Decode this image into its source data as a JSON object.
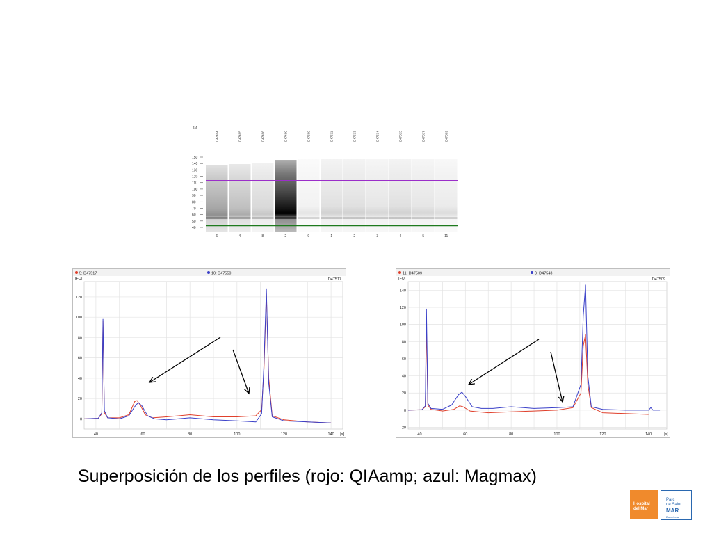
{
  "chart_data": [
    {
      "type": "heatmap",
      "yunit": "[s]",
      "yticks": [
        150,
        140,
        130,
        120,
        110,
        100,
        90,
        80,
        70,
        60,
        50,
        40
      ],
      "lanes": [
        {
          "label": "D47494",
          "number": "6",
          "dark": 0.35
        },
        {
          "label": "D47495",
          "number": "4",
          "dark": 0.25
        },
        {
          "label": "D47496",
          "number": "8",
          "dark": 0.15
        },
        {
          "label": "D47490",
          "number": "2",
          "dark": 0.9
        },
        {
          "label": "D47509",
          "number": "9",
          "dark": 0.05
        },
        {
          "label": "D47511",
          "number": "1",
          "dark": 0.12
        },
        {
          "label": "D47513",
          "number": "2",
          "dark": 0.12
        },
        {
          "label": "D47514",
          "number": "3",
          "dark": 0.1
        },
        {
          "label": "D47515",
          "number": "4",
          "dark": 0.12
        },
        {
          "label": "D47517",
          "number": "5",
          "dark": 0.1
        },
        {
          "label": "D47509",
          "number": "11",
          "dark": 0.08
        }
      ],
      "upper_marker_s": 113,
      "lower_marker_s": 43,
      "upper_marker_color": "#9b2fc9",
      "lower_marker_color": "#1e7a1e"
    },
    {
      "type": "line",
      "legend": [
        "5: D47517",
        "10: D47550"
      ],
      "corner_label": "D47517",
      "yunit": "[FU]",
      "xunit": "[s]",
      "xlim": [
        35,
        145
      ],
      "ylim": [
        -10,
        135
      ],
      "xticks": [
        40,
        60,
        80,
        100,
        120,
        140
      ],
      "yticks": [
        0,
        20,
        40,
        60,
        80,
        100,
        120
      ],
      "series": [
        {
          "name": "5: D47517",
          "color": "#e0402c",
          "x": [
            35,
            41,
            42.5,
            43,
            43.6,
            45,
            50,
            54,
            56.5,
            57.5,
            59,
            61,
            64,
            70,
            80,
            90,
            100,
            108,
            110.5,
            111.5,
            112.5,
            113.5,
            115,
            120,
            130,
            140
          ],
          "y": [
            0,
            0.5,
            5,
            96,
            6,
            1,
            1,
            4,
            17,
            18,
            13,
            4,
            1,
            2,
            4,
            2,
            2,
            3,
            9,
            50,
            123,
            40,
            3,
            -1,
            -3,
            -4
          ]
        },
        {
          "name": "10: D47550",
          "color": "#3a40c8",
          "x": [
            35,
            41,
            42.5,
            43,
            43.6,
            45,
            50,
            54,
            56.5,
            58,
            59.5,
            62,
            65,
            70,
            80,
            90,
            100,
            108,
            110.5,
            111.5,
            112.5,
            113.5,
            115,
            120,
            130,
            140
          ],
          "y": [
            0,
            0.5,
            6,
            98,
            8,
            1,
            0,
            3,
            12,
            16,
            13,
            3,
            0,
            -1,
            1,
            -1,
            -2,
            -3,
            5,
            55,
            128,
            35,
            2,
            -2,
            -3,
            -4
          ]
        }
      ]
    },
    {
      "type": "line",
      "legend": [
        "11: D47509",
        "9: D47543"
      ],
      "corner_label": "D47509",
      "yunit": "[FU]",
      "xunit": "[s]",
      "xlim": [
        35,
        148
      ],
      "ylim": [
        -22,
        150
      ],
      "xticks": [
        40,
        60,
        80,
        100,
        120,
        140
      ],
      "yticks": [
        -20,
        0,
        20,
        40,
        60,
        80,
        100,
        120,
        140
      ],
      "series": [
        {
          "name": "11: D47509",
          "color": "#e0402c",
          "x": [
            35,
            41,
            42.5,
            43,
            43.6,
            45,
            50,
            55,
            57.5,
            59,
            62,
            70,
            80,
            90,
            100,
            107,
            110.5,
            111.5,
            112.5,
            113.5,
            115,
            120,
            130,
            140
          ],
          "y": [
            0,
            0.5,
            4,
            100,
            6,
            1,
            -1,
            1,
            5,
            4,
            -1,
            -3,
            -2,
            -1,
            0,
            3,
            20,
            75,
            88,
            30,
            3,
            -3,
            -4,
            -5
          ]
        },
        {
          "name": "9: D47543",
          "color": "#3a40c8",
          "x": [
            35,
            41,
            42.5,
            43,
            43.6,
            45,
            50,
            54,
            57,
            58.5,
            60,
            63,
            67,
            72,
            80,
            90,
            100,
            107,
            110.5,
            111.5,
            112.5,
            113.5,
            115,
            120,
            130,
            140,
            141,
            142,
            145
          ],
          "y": [
            0,
            0.5,
            5,
            118,
            8,
            2,
            1,
            6,
            18,
            21,
            16,
            4,
            2,
            2,
            4,
            2,
            3,
            4,
            30,
            110,
            146,
            40,
            4,
            1,
            0,
            0,
            3,
            0,
            0
          ]
        }
      ]
    }
  ],
  "caption": "Superposición de los perfiles (rojo: QIAamp; azul: Magmax)",
  "logos": {
    "hospital": "Hospital del Mar",
    "psm_line1": "Parc",
    "psm_line2": "de Salut",
    "psm_line3": "MAR",
    "psm_line4": "Barcelona"
  }
}
